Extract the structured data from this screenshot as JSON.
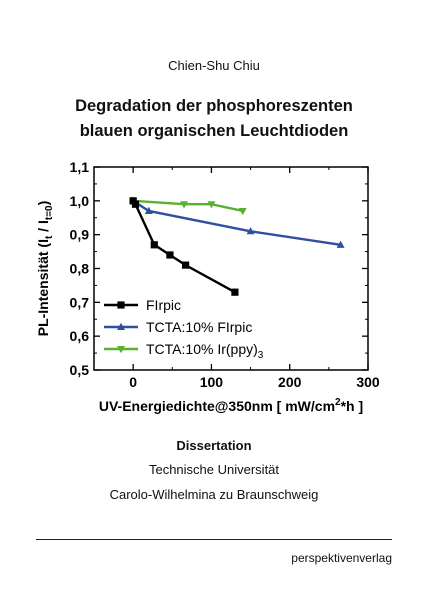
{
  "cover": {
    "author": "Chien-Shu Chiu",
    "title_line1": "Degradation der phosphoreszenten",
    "title_line2": "blauen organischen Leuchtdioden",
    "dissertation": "Dissertation",
    "university_line1": "Technische Universität",
    "university_line2": "Carolo-Wilhelmina zu Braunschweig",
    "publisher": "perspektivenverlag"
  },
  "chart_data": {
    "type": "line",
    "xlabel": "UV-Energiedichte@350nm [ mW/cm²*h ]",
    "ylabel": "PL-Intensität (I_t / I_t=0)",
    "xlim": [
      -50,
      300
    ],
    "ylim": [
      0.5,
      1.1
    ],
    "x_ticks": [
      0,
      100,
      200,
      300
    ],
    "x_tick_labels": [
      "0",
      "100",
      "200",
      "300"
    ],
    "y_ticks": [
      0.5,
      0.6,
      0.7,
      0.8,
      0.9,
      1.0,
      1.1
    ],
    "y_tick_labels": [
      "0,5",
      "0,6",
      "0,7",
      "0,8",
      "0,9",
      "1,0",
      "1,1"
    ],
    "grid": false,
    "legend_position": "bottom-left",
    "series": [
      {
        "name": "FIrpic",
        "color": "#000000",
        "marker": "square",
        "x": [
          0,
          3,
          27,
          47,
          67,
          130
        ],
        "y": [
          1.0,
          0.99,
          0.87,
          0.84,
          0.81,
          0.73
        ]
      },
      {
        "name": "TCTA:10% FIrpic",
        "color": "#2f4f9f",
        "marker": "triangle-up",
        "x": [
          0,
          20,
          150,
          265
        ],
        "y": [
          1.0,
          0.97,
          0.91,
          0.87
        ]
      },
      {
        "name": "TCTA:10% Ir(ppy)3",
        "color": "#5ab030",
        "marker": "triangle-down",
        "x": [
          0,
          65,
          100,
          140
        ],
        "y": [
          1.0,
          0.99,
          0.99,
          0.97
        ]
      }
    ]
  }
}
